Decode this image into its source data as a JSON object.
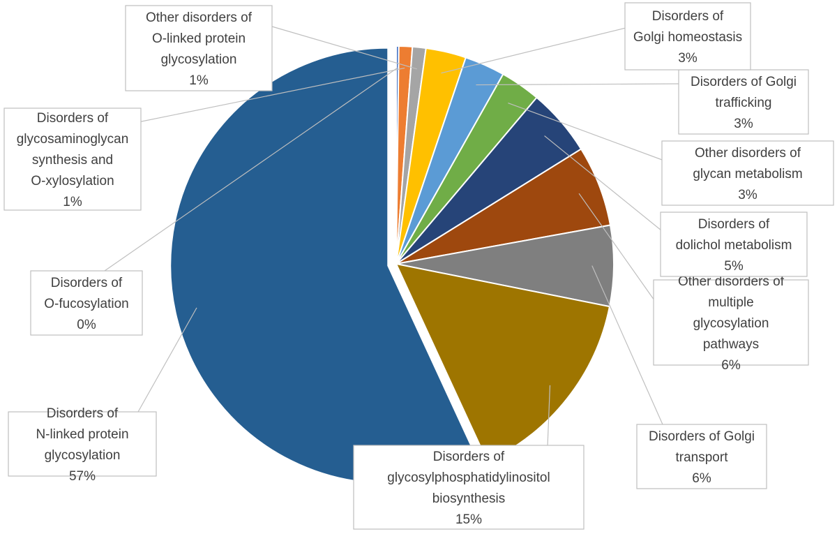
{
  "chart_data": {
    "type": "pie",
    "title": "",
    "slices": [
      {
        "label": "Disorders of N-linked protein glycosylation",
        "value": 57,
        "display": "57%",
        "color": "#255E91"
      },
      {
        "label": "Disorders of glycosylphosphatidylinositol biosynthesis",
        "value": 15,
        "display": "15%",
        "color": "#9E7500"
      },
      {
        "label": "Disorders of Golgi transport",
        "value": 6,
        "display": "6%",
        "color": "#7F7F7F"
      },
      {
        "label": "Other disorders of multiple glycosylation pathways",
        "value": 6,
        "display": "6%",
        "color": "#9E480E"
      },
      {
        "label": "Disorders of dolichol metabolism",
        "value": 5,
        "display": "5%",
        "color": "#264478"
      },
      {
        "label": "Other disorders of glycan metabolism",
        "value": 3,
        "display": "3%",
        "color": "#70AD47"
      },
      {
        "label": "Disorders of Golgi trafficking",
        "value": 3,
        "display": "3%",
        "color": "#5B9BD5"
      },
      {
        "label": "Disorders of Golgi homeostasis",
        "value": 3,
        "display": "3%",
        "color": "#FFC000"
      },
      {
        "label": "Other disorders of O-linked protein glycosylation",
        "value": 1,
        "display": "1%",
        "color": "#A5A5A5"
      },
      {
        "label": "Disorders of glycosaminoglycan synthesis and O-xylosylation",
        "value": 1,
        "display": "1%",
        "color": "#ED7D31"
      },
      {
        "label": "Disorders of O-fucosylation",
        "value": 0,
        "display": "0%",
        "color": "#4472C4"
      }
    ],
    "legend": "none",
    "data_labels": "callouts"
  }
}
